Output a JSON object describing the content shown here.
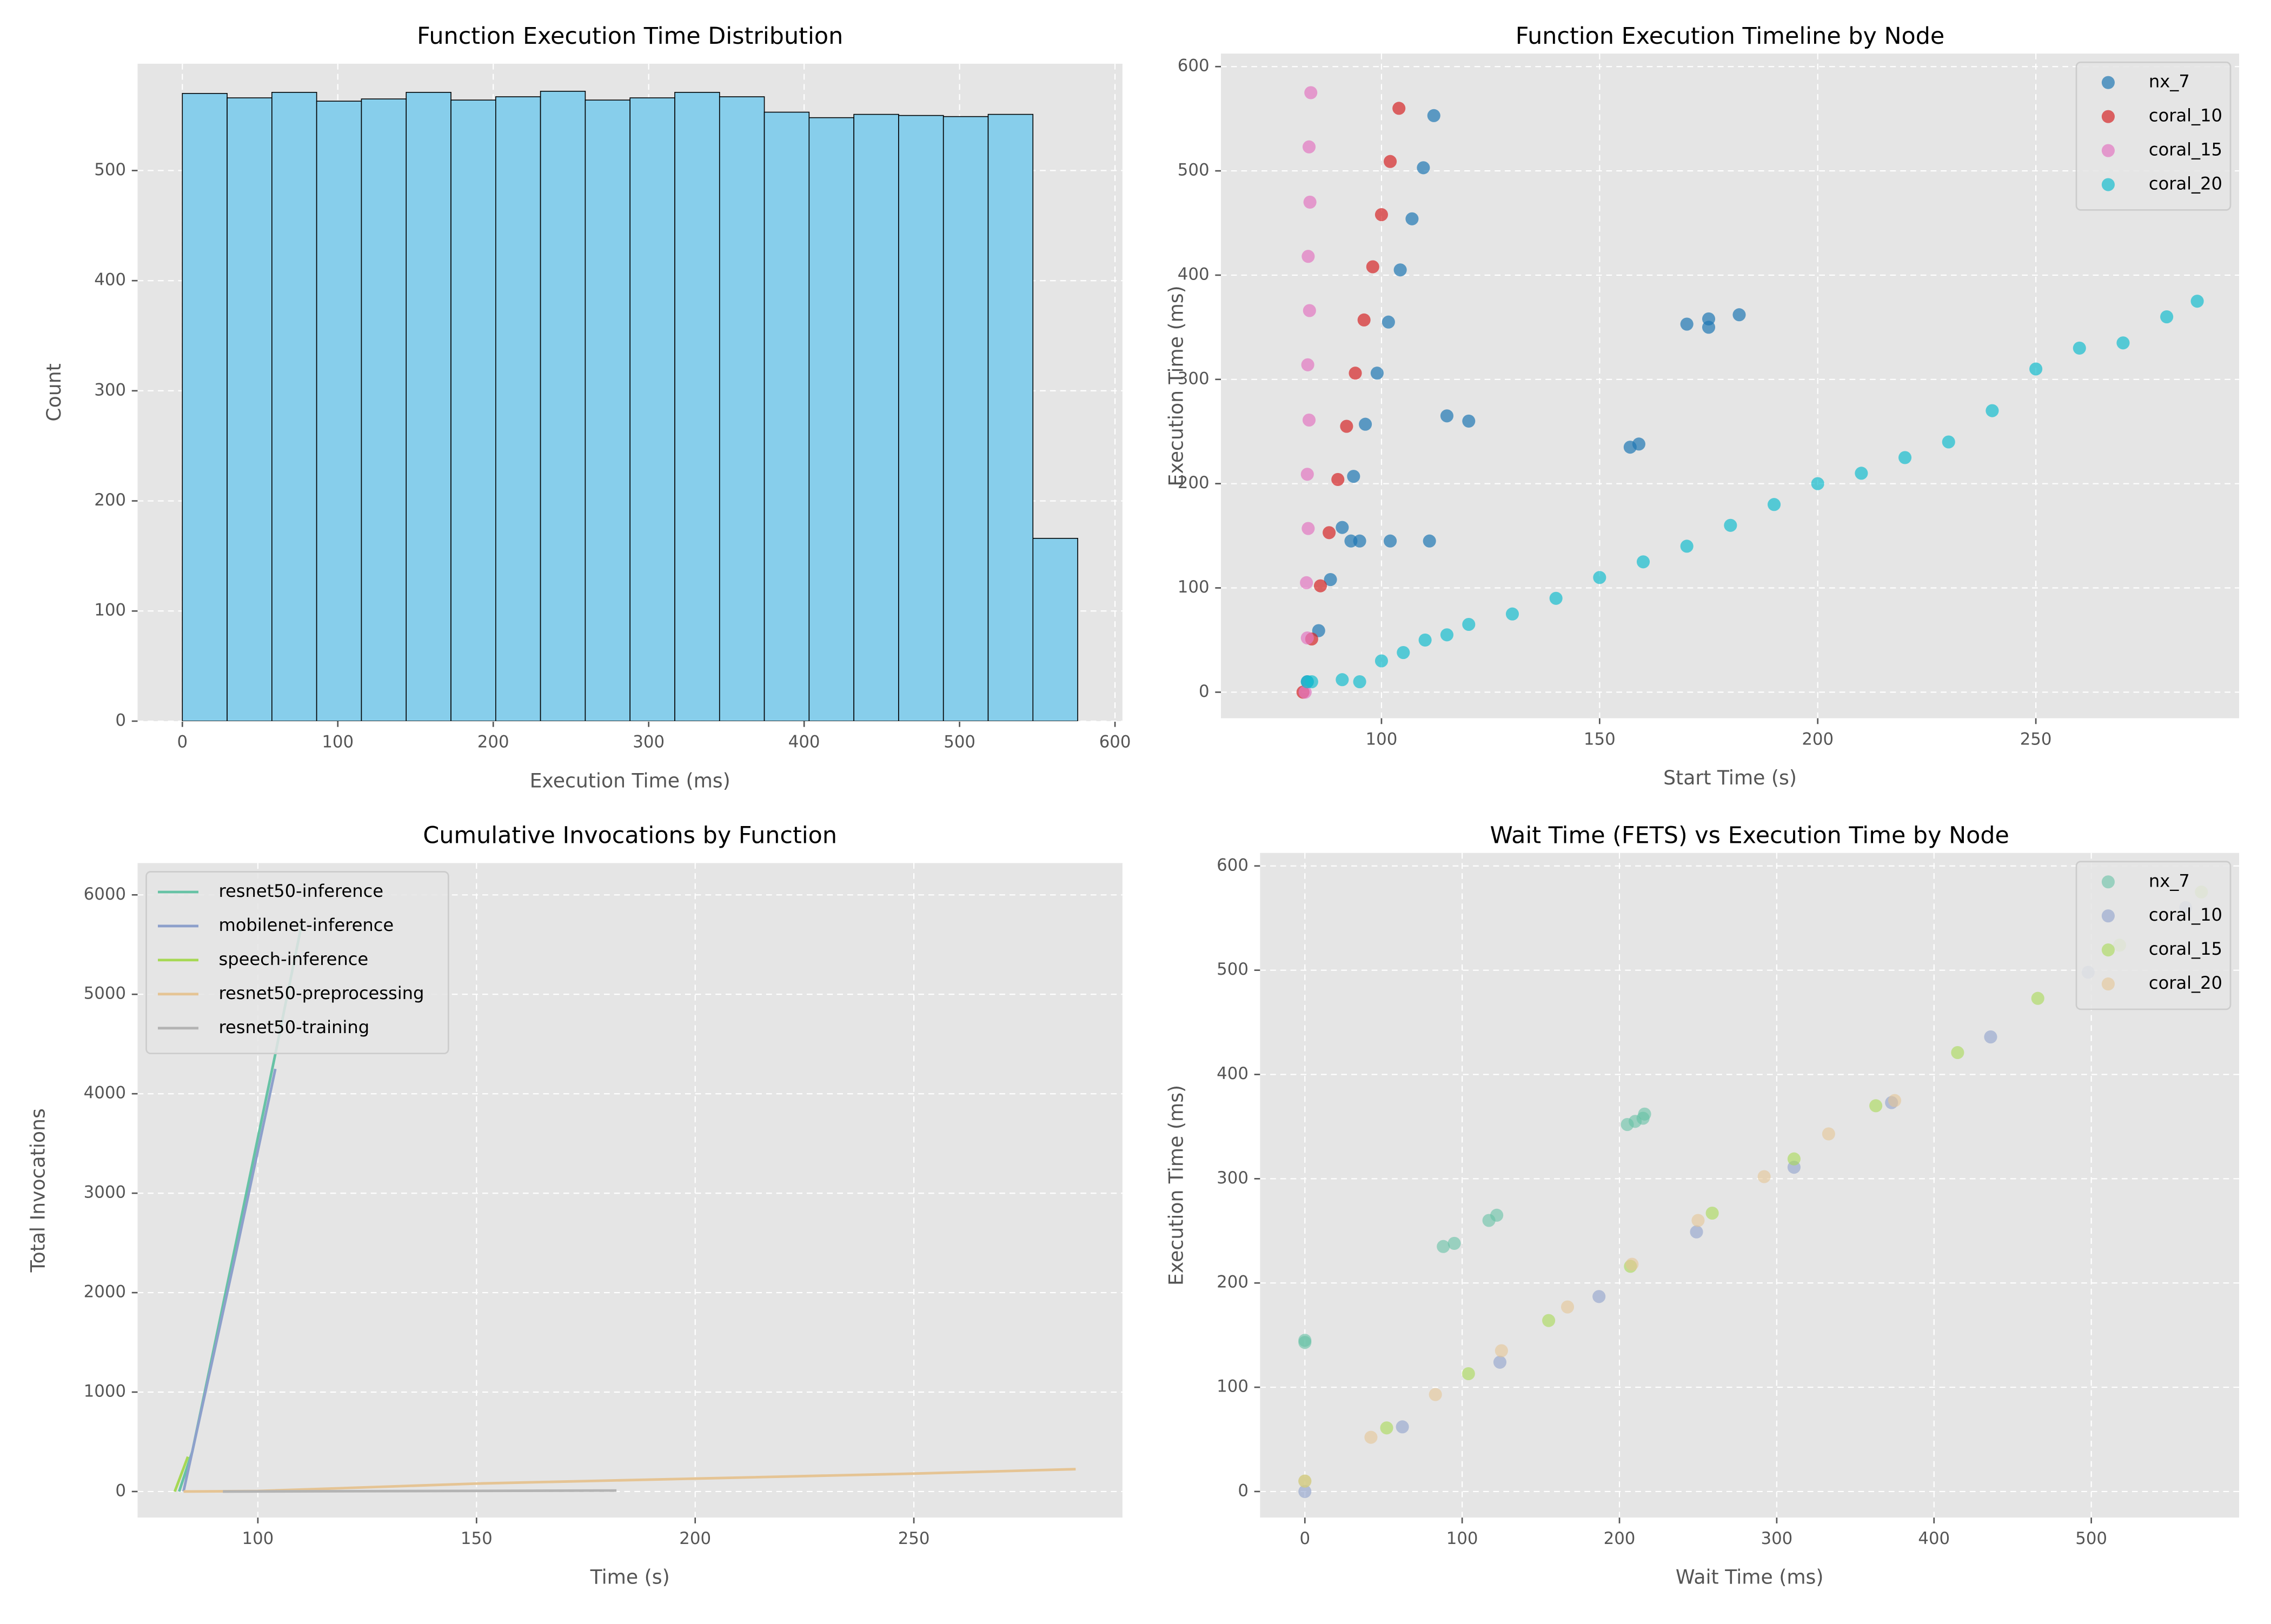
{
  "chart_data": [
    {
      "type": "histogram",
      "title": "Function Execution Time Distribution",
      "xlabel": "Execution Time (ms)",
      "ylabel": "Count",
      "bins": [
        0,
        28.8,
        57.6,
        86.4,
        115.2,
        144,
        172.8,
        201.6,
        230.4,
        259.2,
        288,
        316.8,
        345.6,
        374.4,
        403.2,
        432,
        460.8,
        489.6,
        518.4,
        547.2,
        576
      ],
      "values": [
        570,
        566,
        571,
        563,
        565,
        571,
        564,
        567,
        572,
        564,
        566,
        571,
        567,
        553,
        548,
        551,
        550,
        549,
        551,
        166
      ],
      "color": "#87ceeb",
      "edgecolor": "#000000",
      "xlim": [
        -28.8,
        604.8
      ],
      "xticks": [
        0,
        100,
        200,
        300,
        400,
        500,
        600
      ],
      "ylim": [
        0,
        597
      ],
      "yticks": [
        0,
        100,
        200,
        300,
        400,
        500
      ],
      "grid": true
    },
    {
      "type": "scatter",
      "title": "Function Execution Timeline by Node",
      "xlabel": "Start Time (s)",
      "ylabel": "Execution Time (ms)",
      "legend": "upper right",
      "alpha": 0.7,
      "series": [
        {
          "name": "nx_7",
          "color": "#1f77b4",
          "x": [
            83,
            85.6,
            88.3,
            91,
            93.6,
            96.3,
            99,
            101.6,
            104.3,
            107,
            109.6,
            112,
            93,
            95,
            102,
            111,
            115,
            120,
            157,
            159,
            170,
            175,
            175,
            182
          ],
          "values": [
            10,
            59,
            108,
            158,
            207,
            257,
            306,
            355,
            405,
            454,
            503,
            553,
            145,
            145,
            145,
            145,
            265,
            260,
            235,
            238,
            353,
            350,
            358,
            362
          ]
        },
        {
          "name": "coral_10",
          "color": "#d62728",
          "x": [
            82,
            84,
            86,
            88,
            90,
            92,
            94,
            96,
            98,
            100,
            102,
            104
          ],
          "values": [
            0,
            51,
            102,
            153,
            204,
            255,
            306,
            357,
            408,
            458,
            509,
            560
          ]
        },
        {
          "name": "coral_15",
          "color": "#e377c2",
          "x": [
            82.5,
            83,
            82.8,
            83.2,
            83,
            83.4,
            83.1,
            83.5,
            83.2,
            83.6,
            83.4,
            83.8
          ],
          "values": [
            0,
            52,
            105,
            157,
            209,
            261,
            314,
            366,
            418,
            470,
            523,
            575
          ]
        },
        {
          "name": "coral_20",
          "color": "#17becf",
          "x": [
            83,
            84,
            91,
            95,
            100,
            105,
            110,
            115,
            120,
            130,
            140,
            150,
            160,
            170,
            180,
            190,
            200,
            210,
            220,
            230,
            240,
            250,
            260,
            270,
            280,
            287
          ],
          "values": [
            10,
            10,
            12,
            10,
            30,
            38,
            50,
            55,
            65,
            75,
            90,
            110,
            125,
            140,
            160,
            180,
            200,
            210,
            225,
            240,
            270,
            310,
            330,
            335,
            360,
            375
          ]
        }
      ],
      "xlim": [
        63.2,
        296.6
      ],
      "xticks": [
        100,
        150,
        200,
        250
      ],
      "ylim": [
        -25,
        612.5
      ],
      "yticks": [
        0,
        100,
        200,
        300,
        400,
        500,
        600
      ],
      "grid": true
    },
    {
      "type": "line",
      "title": "Cumulative Invocations by Function",
      "xlabel": "Time (s)",
      "ylabel": "Total Invocations",
      "legend": "upper left",
      "series": [
        {
          "name": "resnet50-inference",
          "color": "#66c2a5",
          "x": [
            82,
            85,
            95,
            104,
            110
          ],
          "values": [
            0,
            400,
            2500,
            4400,
            5700
          ]
        },
        {
          "name": "mobilenet-inference",
          "color": "#8da0cb",
          "x": [
            83,
            85,
            95,
            104
          ],
          "values": [
            0,
            400,
            2400,
            4250
          ]
        },
        {
          "name": "speech-inference",
          "color": "#a6d854",
          "x": [
            81,
            84
          ],
          "values": [
            0,
            350
          ]
        },
        {
          "name": "resnet50-preprocessing",
          "color": "#e5c494",
          "x": [
            83,
            100,
            150,
            200,
            250,
            287
          ],
          "values": [
            0,
            5,
            80,
            130,
            180,
            225
          ]
        },
        {
          "name": "resnet50-training",
          "color": "#b3b3b3",
          "x": [
            92,
            182
          ],
          "values": [
            0,
            10
          ]
        }
      ],
      "xlim": [
        72.5,
        297.7
      ],
      "xticks": [
        100,
        150,
        200,
        250
      ],
      "ylim": [
        -262,
        6320
      ],
      "yticks": [
        0,
        1000,
        2000,
        3000,
        4000,
        5000,
        6000
      ],
      "grid": true
    },
    {
      "type": "scatter",
      "title": "Wait Time (FETS) vs Execution Time by Node",
      "xlabel": "Wait Time (ms)",
      "ylabel": "Execution Time (ms)",
      "legend": "upper right",
      "alpha": 0.6,
      "series": [
        {
          "name": "nx_7",
          "color": "#66c2a5",
          "x": [
            0,
            0,
            88,
            95,
            117,
            122,
            205,
            210,
            215,
            216
          ],
          "values": [
            145,
            143,
            235,
            238,
            260,
            265,
            352,
            355,
            358,
            362
          ]
        },
        {
          "name": "coral_10",
          "color": "#8da0cb",
          "x": [
            0,
            62,
            124,
            187,
            249,
            311,
            373,
            436,
            498,
            560
          ],
          "values": [
            0,
            62,
            124,
            187,
            249,
            311,
            373,
            436,
            498,
            560
          ]
        },
        {
          "name": "coral_15",
          "color": "#a6d854",
          "x": [
            0,
            52,
            104,
            155,
            207,
            259,
            311,
            363,
            415,
            466,
            518,
            570
          ],
          "values": [
            10,
            61,
            113,
            164,
            216,
            267,
            319,
            370,
            421,
            473,
            524,
            575
          ]
        },
        {
          "name": "coral_20",
          "color": "#e5c494",
          "x": [
            0,
            42,
            83,
            125,
            167,
            208,
            250,
            292,
            333,
            375
          ],
          "values": [
            10,
            52,
            93,
            135,
            177,
            218,
            260,
            302,
            343,
            375
          ]
        }
      ],
      "xlim": [
        -28.5,
        594
      ],
      "xticks": [
        0,
        100,
        200,
        300,
        400,
        500
      ],
      "ylim": [
        -25,
        612.5
      ],
      "yticks": [
        0,
        100,
        200,
        300,
        400,
        500,
        600
      ],
      "grid": true
    }
  ]
}
